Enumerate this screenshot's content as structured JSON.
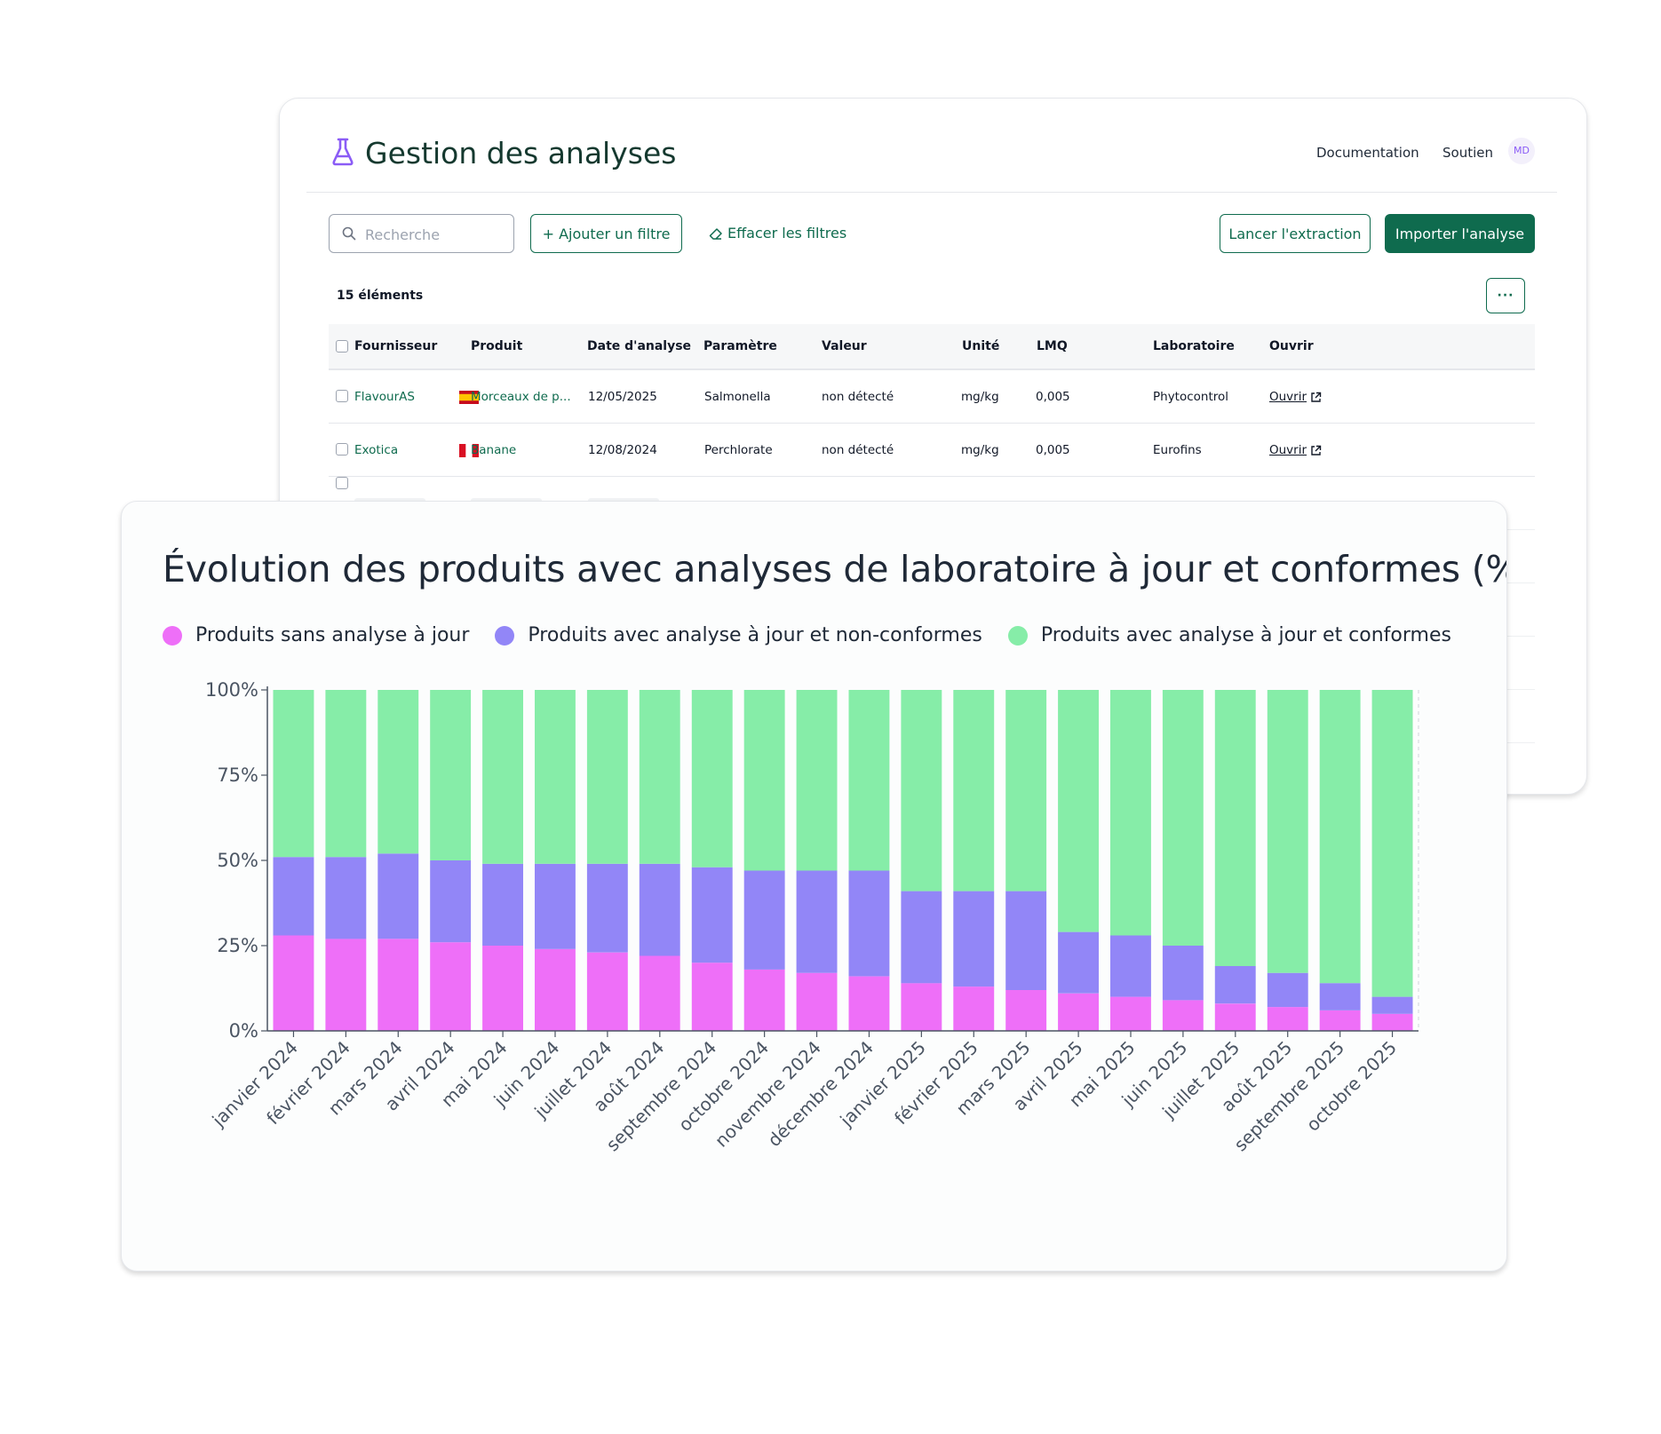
{
  "app": {
    "title": "Gestion des analyses",
    "icon": "flask-icon",
    "nav": {
      "documentation": "Documentation",
      "support": "Soutien"
    },
    "avatar_initials": "MD"
  },
  "toolbar": {
    "search_placeholder": "Recherche",
    "add_filter_label": "+ Ajouter un filtre",
    "clear_filters_label": "Effacer les filtres",
    "extract_label": "Lancer l'extraction",
    "import_label": "Importer l'analyse",
    "more_label": "···"
  },
  "table": {
    "count_label": "15 éléments",
    "columns": [
      "Fournisseur",
      "Produit",
      "Date d'analyse",
      "Paramètre",
      "Valeur",
      "Unité",
      "LMQ",
      "Laboratoire",
      "Ouvrir"
    ],
    "rows": [
      {
        "supplier": "FlavourAS",
        "flag": "spain-flag-icon",
        "product": "Morceaux de p...",
        "date": "12/05/2025",
        "parameter": "Salmonella",
        "value": "non détecté",
        "unit": "mg/kg",
        "lmq": "0,005",
        "lab": "Phytocontrol",
        "open": "Ouvrir"
      },
      {
        "supplier": "Exotica",
        "flag": "peru-flag-icon",
        "product": "Banane",
        "date": "12/08/2024",
        "parameter": "Perchlorate",
        "value": "non détecté",
        "unit": "mg/kg",
        "lmq": "0,005",
        "lab": "Eurofins",
        "open": "Ouvrir"
      }
    ]
  },
  "colors": {
    "brand_green": "#0f6b4e",
    "series_pink": "#ee6ff8",
    "series_purple": "#9286f7",
    "series_green": "#86eda8"
  },
  "chart_data": {
    "type": "bar",
    "stacked": true,
    "title": "Évolution des produits avec analyses de laboratoire à jour et conformes (%)",
    "legend_position": "top-left",
    "ylim": [
      0,
      100
    ],
    "yticks": [
      "0%",
      "25%",
      "50%",
      "75%",
      "100%"
    ],
    "categories": [
      "janvier 2024",
      "février 2024",
      "mars 2024",
      "avril 2024",
      "mai 2024",
      "juin 2024",
      "juillet 2024",
      "août 2024",
      "septembre 2024",
      "octobre 2024",
      "novembre 2024",
      "décembre 2024",
      "janvier 2025",
      "février 2025",
      "mars 2025",
      "avril 2025",
      "mai 2025",
      "juin 2025",
      "juillet 2025",
      "août 2025",
      "septembre 2025",
      "octobre 2025"
    ],
    "series": [
      {
        "name": "Produits sans analyse à jour",
        "color": "#ee6ff8",
        "values": [
          28,
          27,
          27,
          26,
          25,
          24,
          23,
          22,
          20,
          18,
          17,
          16,
          14,
          13,
          12,
          11,
          10,
          9,
          8,
          7,
          6,
          5
        ]
      },
      {
        "name": "Produits avec analyse à jour et non-conformes",
        "color": "#9286f7",
        "values": [
          23,
          24,
          25,
          24,
          24,
          25,
          26,
          27,
          28,
          29,
          30,
          31,
          27,
          28,
          29,
          18,
          18,
          16,
          11,
          10,
          8,
          5
        ]
      },
      {
        "name": "Produits avec analyse à jour et conformes",
        "color": "#86eda8",
        "values": [
          49,
          49,
          48,
          50,
          51,
          51,
          51,
          51,
          52,
          53,
          53,
          53,
          59,
          59,
          59,
          71,
          72,
          75,
          81,
          83,
          86,
          90
        ]
      }
    ]
  }
}
